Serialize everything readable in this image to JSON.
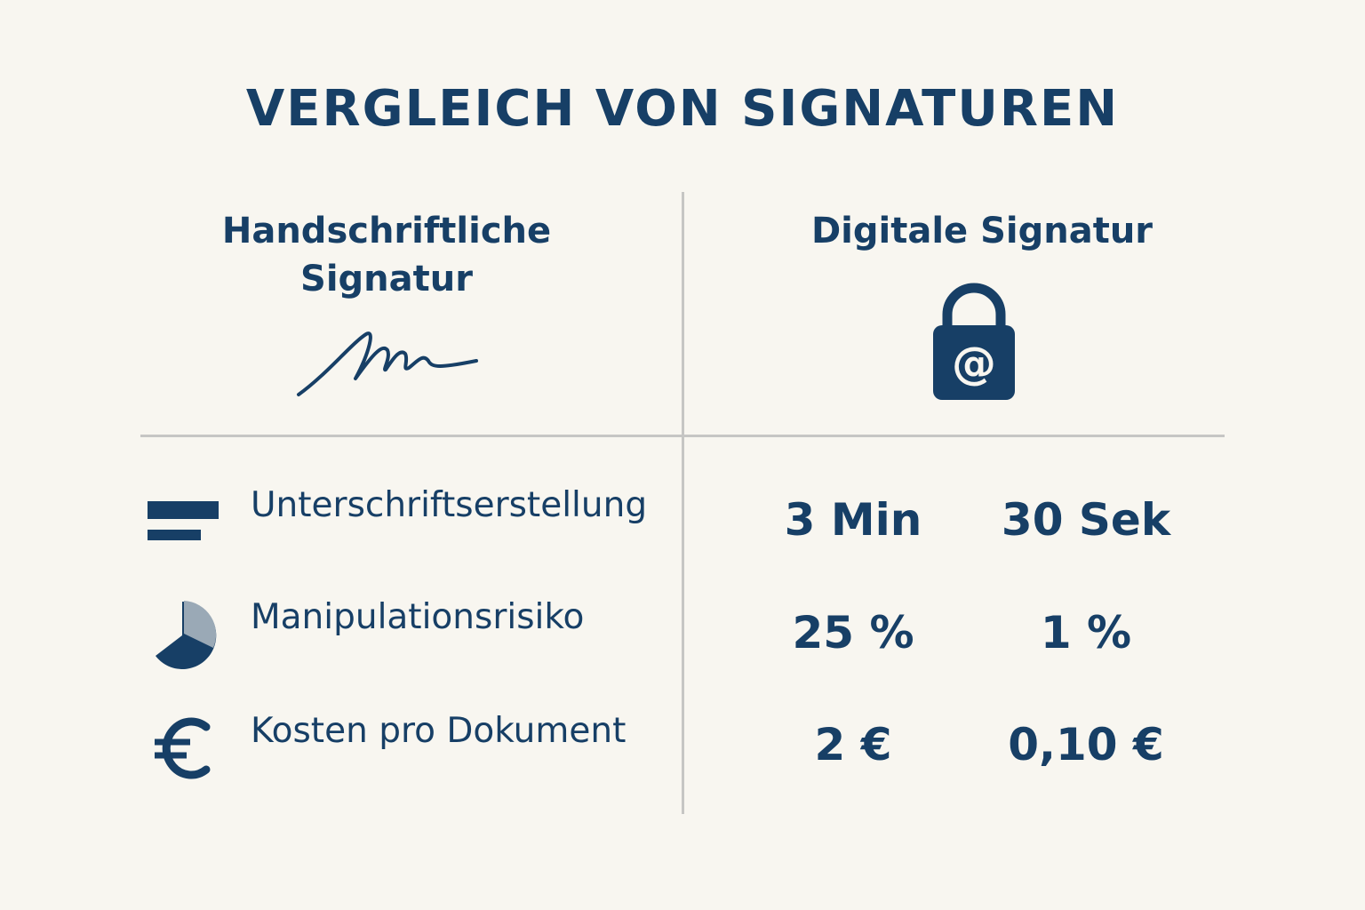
{
  "title": "VERGLEICH VON SIGNATUREN",
  "columns": {
    "handwritten": "Handschriftliche Signatur",
    "digital": "Digitale Signatur"
  },
  "colors": {
    "background": "#f8f6f0",
    "primary": "#173f66",
    "divider": "#c6c6c4",
    "pie_light": "#9aa9b6"
  },
  "icons": {
    "handwritten": "signature-icon",
    "digital": "lock-at-icon"
  },
  "rows": [
    {
      "icon": "bars-icon",
      "label": "Unterschriftserstellung",
      "handwritten": "3 Min",
      "digital": "30 Sek"
    },
    {
      "icon": "pie-chart-icon",
      "label": "Manipulationsrisiko",
      "handwritten": "25 %",
      "digital": "1 %"
    },
    {
      "icon": "euro-icon",
      "label": "Kosten pro Dokument",
      "handwritten": "2 €",
      "digital": "0,10 €"
    }
  ]
}
